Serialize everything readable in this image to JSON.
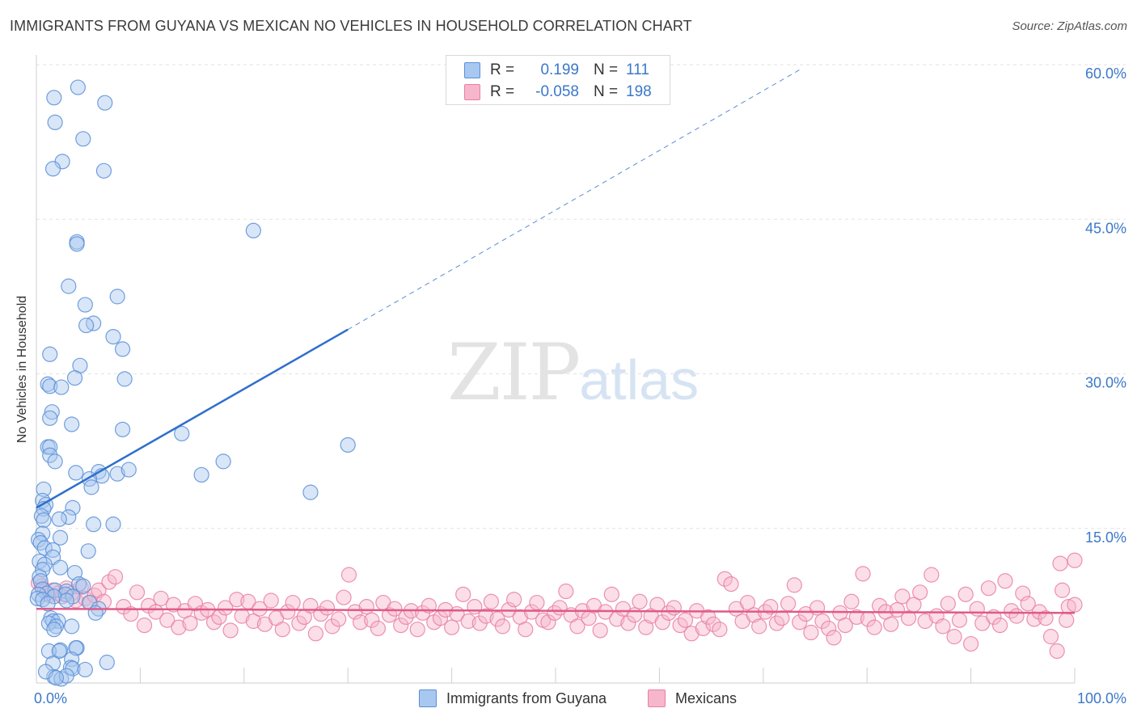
{
  "title": "IMMIGRANTS FROM GUYANA VS MEXICAN NO VEHICLES IN HOUSEHOLD CORRELATION CHART",
  "source": "Source: ZipAtlas.com",
  "watermark": {
    "zip": "ZIP",
    "atlas": "atlas"
  },
  "legend": {
    "series": [
      {
        "r_label": "R =",
        "r_value": "0.199",
        "n_label": "N =",
        "n_value": "111"
      },
      {
        "r_label": "R =",
        "r_value": "-0.058",
        "n_label": "N =",
        "n_value": "198"
      }
    ]
  },
  "colors": {
    "guyana_fill": "#a8c8f0",
    "guyana_stroke": "#5b8fd6",
    "guyana_line": "#2f6fcc",
    "mexicans_fill": "#f6b6cb",
    "mexicans_stroke": "#e97fa2",
    "mexicans_line": "#e05a88",
    "value_text": "#3b78c9",
    "grid": "#e2e2e2"
  },
  "chart_data": {
    "type": "scatter",
    "title": "IMMIGRANTS FROM GUYANA VS MEXICAN NO VEHICLES IN HOUSEHOLD CORRELATION CHART",
    "xlabel": "",
    "ylabel": "No Vehicles in Household",
    "xlim": [
      0,
      100
    ],
    "ylim": [
      0,
      60
    ],
    "x_tick_labels": [
      "0.0%",
      "100.0%"
    ],
    "y_ticks": [
      15,
      30,
      45,
      60
    ],
    "y_tick_labels": [
      "15.0%",
      "30.0%",
      "45.0%",
      "60.0%"
    ],
    "grid": true,
    "legend_position": "top-center",
    "series": [
      {
        "name": "Immigrants from Guyana",
        "r": 0.199,
        "n": 111,
        "trend": {
          "x_start": 0,
          "y_start": 17.0,
          "x_solid_end": 30,
          "y_solid_end": 34.3,
          "x_end": 73.5,
          "y_end": 59.5
        },
        "points": [
          [
            4.0,
            57.8
          ],
          [
            1.7,
            56.8
          ],
          [
            6.6,
            56.3
          ],
          [
            1.8,
            54.4
          ],
          [
            4.5,
            52.8
          ],
          [
            2.5,
            50.6
          ],
          [
            1.6,
            49.9
          ],
          [
            6.5,
            49.7
          ],
          [
            20.9,
            43.9
          ],
          [
            3.9,
            42.8
          ],
          [
            3.9,
            42.6
          ],
          [
            3.1,
            38.5
          ],
          [
            7.8,
            37.5
          ],
          [
            4.7,
            36.7
          ],
          [
            5.5,
            34.9
          ],
          [
            4.8,
            34.7
          ],
          [
            7.4,
            33.6
          ],
          [
            8.3,
            32.4
          ],
          [
            1.3,
            31.9
          ],
          [
            4.2,
            30.8
          ],
          [
            8.5,
            29.5
          ],
          [
            3.7,
            29.6
          ],
          [
            1.1,
            29.0
          ],
          [
            1.3,
            28.8
          ],
          [
            2.4,
            28.7
          ],
          [
            1.5,
            26.3
          ],
          [
            1.3,
            25.7
          ],
          [
            3.4,
            25.1
          ],
          [
            8.3,
            24.6
          ],
          [
            14.0,
            24.2
          ],
          [
            30.0,
            23.1
          ],
          [
            1.1,
            22.9
          ],
          [
            1.3,
            22.9
          ],
          [
            1.3,
            22.1
          ],
          [
            1.8,
            21.5
          ],
          [
            18.0,
            21.5
          ],
          [
            6.0,
            20.5
          ],
          [
            3.8,
            20.4
          ],
          [
            7.8,
            20.3
          ],
          [
            6.3,
            20.1
          ],
          [
            8.9,
            20.7
          ],
          [
            15.9,
            20.2
          ],
          [
            5.1,
            19.8
          ],
          [
            5.3,
            19.0
          ],
          [
            26.4,
            18.5
          ],
          [
            0.7,
            18.8
          ],
          [
            0.6,
            17.7
          ],
          [
            0.9,
            17.3
          ],
          [
            0.7,
            16.9
          ],
          [
            3.5,
            17.0
          ],
          [
            0.5,
            16.2
          ],
          [
            3.1,
            16.1
          ],
          [
            0.7,
            15.8
          ],
          [
            2.2,
            15.9
          ],
          [
            5.5,
            15.4
          ],
          [
            7.4,
            15.4
          ],
          [
            0.6,
            14.5
          ],
          [
            2.3,
            14.1
          ],
          [
            0.2,
            13.9
          ],
          [
            0.4,
            13.6
          ],
          [
            0.8,
            13.1
          ],
          [
            1.6,
            12.9
          ],
          [
            5.0,
            12.8
          ],
          [
            1.6,
            12.2
          ],
          [
            0.3,
            11.8
          ],
          [
            0.8,
            11.5
          ],
          [
            2.3,
            11.2
          ],
          [
            0.6,
            11.0
          ],
          [
            3.7,
            10.7
          ],
          [
            0.3,
            10.3
          ],
          [
            0.4,
            9.9
          ],
          [
            4.1,
            9.6
          ],
          [
            4.5,
            9.4
          ],
          [
            0.6,
            9.1
          ],
          [
            1.8,
            9.0
          ],
          [
            2.9,
            8.9
          ],
          [
            1.0,
            8.7
          ],
          [
            2.8,
            8.6
          ],
          [
            0.2,
            8.6
          ],
          [
            1.7,
            8.4
          ],
          [
            0.1,
            8.2
          ],
          [
            3.5,
            8.4
          ],
          [
            0.6,
            8.1
          ],
          [
            2.9,
            8.0
          ],
          [
            5.1,
            7.8
          ],
          [
            1.1,
            7.7
          ],
          [
            6.0,
            7.2
          ],
          [
            5.7,
            6.8
          ],
          [
            1.4,
            6.3
          ],
          [
            1.6,
            6.0
          ],
          [
            2.1,
            6.0
          ],
          [
            1.2,
            5.8
          ],
          [
            1.9,
            5.5
          ],
          [
            3.4,
            5.5
          ],
          [
            1.7,
            5.2
          ],
          [
            3.9,
            3.4
          ],
          [
            2.3,
            3.2
          ],
          [
            3.8,
            3.4
          ],
          [
            1.2,
            3.1
          ],
          [
            2.2,
            3.1
          ],
          [
            3.4,
            2.3
          ],
          [
            1.6,
            1.9
          ],
          [
            3.3,
            1.5
          ],
          [
            6.8,
            2.0
          ],
          [
            3.5,
            1.4
          ],
          [
            4.7,
            1.3
          ],
          [
            1.7,
            0.6
          ],
          [
            2.4,
            0.4
          ],
          [
            2.9,
            0.7
          ],
          [
            0.9,
            1.1
          ],
          [
            1.9,
            0.5
          ]
        ]
      },
      {
        "name": "Mexicans",
        "r": -0.058,
        "n": 198,
        "trend": {
          "x_start": 0,
          "y_start": 7.2,
          "x_end": 100,
          "y_end": 6.8
        },
        "points": [
          [
            0.2,
            9.7
          ],
          [
            0.5,
            9.4
          ],
          [
            0.8,
            8.9
          ],
          [
            1.2,
            8.5
          ],
          [
            1.6,
            9.0
          ],
          [
            2.1,
            8.7
          ],
          [
            2.5,
            8.4
          ],
          [
            2.9,
            9.2
          ],
          [
            3.4,
            8.7
          ],
          [
            3.8,
            8.0
          ],
          [
            4.3,
            9.3
          ],
          [
            4.7,
            8.2
          ],
          [
            5.2,
            7.8
          ],
          [
            5.6,
            8.5
          ],
          [
            6.0,
            9.0
          ],
          [
            6.5,
            7.9
          ],
          [
            7.0,
            9.8
          ],
          [
            7.6,
            10.3
          ],
          [
            8.4,
            7.4
          ],
          [
            9.1,
            6.7
          ],
          [
            9.7,
            8.8
          ],
          [
            10.4,
            5.6
          ],
          [
            10.8,
            7.5
          ],
          [
            11.5,
            6.9
          ],
          [
            12.0,
            8.2
          ],
          [
            12.6,
            6.1
          ],
          [
            13.2,
            7.6
          ],
          [
            13.7,
            5.4
          ],
          [
            14.3,
            7.0
          ],
          [
            14.8,
            5.8
          ],
          [
            15.3,
            7.7
          ],
          [
            15.9,
            6.8
          ],
          [
            16.5,
            7.1
          ],
          [
            17.1,
            5.9
          ],
          [
            17.6,
            6.4
          ],
          [
            18.2,
            7.3
          ],
          [
            18.7,
            5.1
          ],
          [
            19.3,
            8.1
          ],
          [
            19.8,
            6.5
          ],
          [
            20.4,
            7.9
          ],
          [
            20.9,
            6.0
          ],
          [
            21.5,
            7.2
          ],
          [
            22.0,
            5.7
          ],
          [
            22.6,
            8.0
          ],
          [
            23.1,
            6.3
          ],
          [
            23.7,
            5.2
          ],
          [
            24.2,
            6.9
          ],
          [
            24.7,
            7.8
          ],
          [
            25.3,
            5.8
          ],
          [
            25.8,
            6.4
          ],
          [
            26.4,
            7.5
          ],
          [
            26.9,
            4.8
          ],
          [
            27.4,
            6.7
          ],
          [
            28.0,
            7.3
          ],
          [
            28.5,
            5.5
          ],
          [
            29.1,
            6.2
          ],
          [
            29.6,
            8.3
          ],
          [
            30.1,
            10.5
          ],
          [
            30.7,
            6.9
          ],
          [
            31.2,
            5.9
          ],
          [
            31.8,
            7.4
          ],
          [
            32.3,
            6.1
          ],
          [
            32.9,
            5.3
          ],
          [
            33.4,
            7.8
          ],
          [
            34.0,
            6.6
          ],
          [
            34.5,
            7.2
          ],
          [
            35.1,
            5.6
          ],
          [
            35.6,
            6.4
          ],
          [
            36.1,
            7.0
          ],
          [
            36.7,
            5.2
          ],
          [
            37.2,
            6.8
          ],
          [
            37.8,
            7.5
          ],
          [
            38.3,
            5.9
          ],
          [
            38.9,
            6.3
          ],
          [
            39.4,
            7.1
          ],
          [
            40.0,
            5.4
          ],
          [
            40.5,
            6.7
          ],
          [
            41.1,
            8.6
          ],
          [
            41.6,
            6.0
          ],
          [
            42.2,
            7.4
          ],
          [
            42.7,
            5.8
          ],
          [
            43.3,
            6.5
          ],
          [
            43.8,
            7.9
          ],
          [
            44.4,
            6.2
          ],
          [
            44.9,
            5.5
          ],
          [
            45.5,
            7.1
          ],
          [
            46.0,
            8.1
          ],
          [
            46.6,
            6.4
          ],
          [
            47.1,
            5.2
          ],
          [
            47.7,
            6.9
          ],
          [
            48.2,
            7.8
          ],
          [
            48.8,
            6.1
          ],
          [
            49.3,
            5.9
          ],
          [
            49.9,
            6.8
          ],
          [
            50.4,
            7.3
          ],
          [
            51.0,
            8.9
          ],
          [
            51.5,
            6.6
          ],
          [
            52.1,
            5.5
          ],
          [
            52.6,
            7.0
          ],
          [
            53.2,
            6.3
          ],
          [
            53.7,
            7.5
          ],
          [
            54.3,
            5.1
          ],
          [
            54.8,
            6.9
          ],
          [
            55.4,
            8.6
          ],
          [
            55.9,
            6.2
          ],
          [
            56.5,
            7.2
          ],
          [
            57.0,
            5.8
          ],
          [
            57.6,
            6.6
          ],
          [
            58.1,
            7.9
          ],
          [
            58.7,
            5.4
          ],
          [
            59.2,
            6.5
          ],
          [
            59.8,
            7.6
          ],
          [
            60.3,
            5.9
          ],
          [
            60.9,
            6.8
          ],
          [
            61.4,
            7.3
          ],
          [
            62.0,
            5.6
          ],
          [
            62.5,
            6.1
          ],
          [
            63.1,
            4.8
          ],
          [
            63.6,
            7.0
          ],
          [
            64.2,
            5.3
          ],
          [
            64.7,
            6.4
          ],
          [
            65.2,
            5.7
          ],
          [
            65.8,
            5.2
          ],
          [
            66.3,
            10.1
          ],
          [
            66.9,
            9.6
          ],
          [
            67.4,
            7.2
          ],
          [
            68.0,
            6.0
          ],
          [
            68.5,
            7.8
          ],
          [
            69.1,
            6.6
          ],
          [
            69.6,
            5.5
          ],
          [
            70.2,
            6.9
          ],
          [
            70.7,
            7.4
          ],
          [
            71.3,
            5.8
          ],
          [
            71.8,
            6.3
          ],
          [
            72.4,
            7.7
          ],
          [
            73.0,
            9.5
          ],
          [
            73.5,
            5.9
          ],
          [
            74.1,
            6.7
          ],
          [
            74.6,
            4.9
          ],
          [
            75.2,
            7.3
          ],
          [
            75.7,
            6.0
          ],
          [
            76.3,
            5.3
          ],
          [
            76.8,
            4.4
          ],
          [
            77.4,
            6.8
          ],
          [
            77.9,
            5.6
          ],
          [
            78.5,
            7.9
          ],
          [
            79.0,
            6.4
          ],
          [
            79.6,
            10.6
          ],
          [
            80.1,
            6.2
          ],
          [
            80.7,
            5.4
          ],
          [
            81.2,
            7.5
          ],
          [
            81.8,
            6.9
          ],
          [
            82.3,
            5.7
          ],
          [
            82.9,
            7.1
          ],
          [
            83.4,
            8.4
          ],
          [
            84.0,
            6.3
          ],
          [
            84.5,
            7.6
          ],
          [
            85.1,
            8.8
          ],
          [
            85.6,
            6.0
          ],
          [
            86.2,
            10.5
          ],
          [
            86.7,
            6.5
          ],
          [
            87.3,
            5.5
          ],
          [
            87.8,
            7.7
          ],
          [
            88.4,
            4.5
          ],
          [
            88.9,
            6.1
          ],
          [
            89.5,
            8.6
          ],
          [
            90.0,
            3.8
          ],
          [
            90.6,
            7.2
          ],
          [
            91.1,
            5.8
          ],
          [
            91.7,
            9.2
          ],
          [
            92.2,
            6.4
          ],
          [
            92.8,
            5.6
          ],
          [
            93.3,
            9.9
          ],
          [
            93.9,
            7.0
          ],
          [
            94.4,
            6.5
          ],
          [
            95.0,
            8.7
          ],
          [
            95.5,
            7.7
          ],
          [
            96.1,
            6.2
          ],
          [
            96.6,
            6.9
          ],
          [
            97.2,
            6.3
          ],
          [
            97.7,
            4.5
          ],
          [
            98.3,
            3.1
          ],
          [
            98.8,
            9.0
          ],
          [
            99.4,
            7.4
          ],
          [
            100.0,
            7.6
          ],
          [
            98.6,
            11.6
          ],
          [
            100.0,
            11.9
          ],
          [
            99.2,
            6.1
          ]
        ]
      }
    ]
  }
}
